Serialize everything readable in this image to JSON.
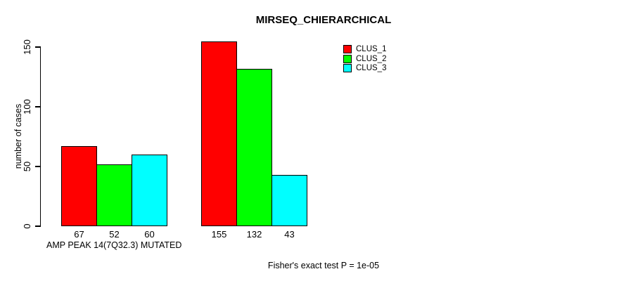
{
  "title": "MIRSEQ_CHIERARCHICAL",
  "y_axis": {
    "label": "number of cases",
    "tick_labels": [
      "0",
      "50",
      "100",
      "150"
    ]
  },
  "x_axis": {
    "label": "AMP PEAK 14(7Q32.3) MUTATED"
  },
  "footer_note": "Fisher's exact test P = 1e-05",
  "colors": {
    "clus_1": "#FF0000",
    "clus_2": "#00FF00",
    "clus_3": "#00FFFF",
    "axis": "#000000",
    "background": "#FFFFFF"
  },
  "legend": {
    "items": [
      {
        "label": "CLUS_1",
        "color": "#FF0000"
      },
      {
        "label": "CLUS_2",
        "color": "#00FF00"
      },
      {
        "label": "CLUS_3",
        "color": "#00FFFF"
      }
    ]
  },
  "chart_data": {
    "type": "bar",
    "title": "MIRSEQ_CHIERARCHICAL",
    "xlabel": "AMP PEAK 14(7Q32.3) MUTATED",
    "ylabel": "number of cases",
    "ylim": [
      0,
      150
    ],
    "yticks": [
      0,
      50,
      100,
      150
    ],
    "grid": false,
    "legend_position": "top-right",
    "categories": [
      "AMP PEAK 14(7Q32.3) MUTATED",
      ""
    ],
    "series": [
      {
        "name": "CLUS_1",
        "color": "#FF0000",
        "values": [
          67,
          155
        ]
      },
      {
        "name": "CLUS_2",
        "color": "#00FF00",
        "values": [
          52,
          132
        ]
      },
      {
        "name": "CLUS_3",
        "color": "#00FFFF",
        "values": [
          60,
          43
        ]
      }
    ],
    "bar_value_labels": [
      [
        67,
        52,
        60
      ],
      [
        155,
        132,
        43
      ]
    ],
    "annotation": "Fisher's exact test P = 1e-05"
  }
}
